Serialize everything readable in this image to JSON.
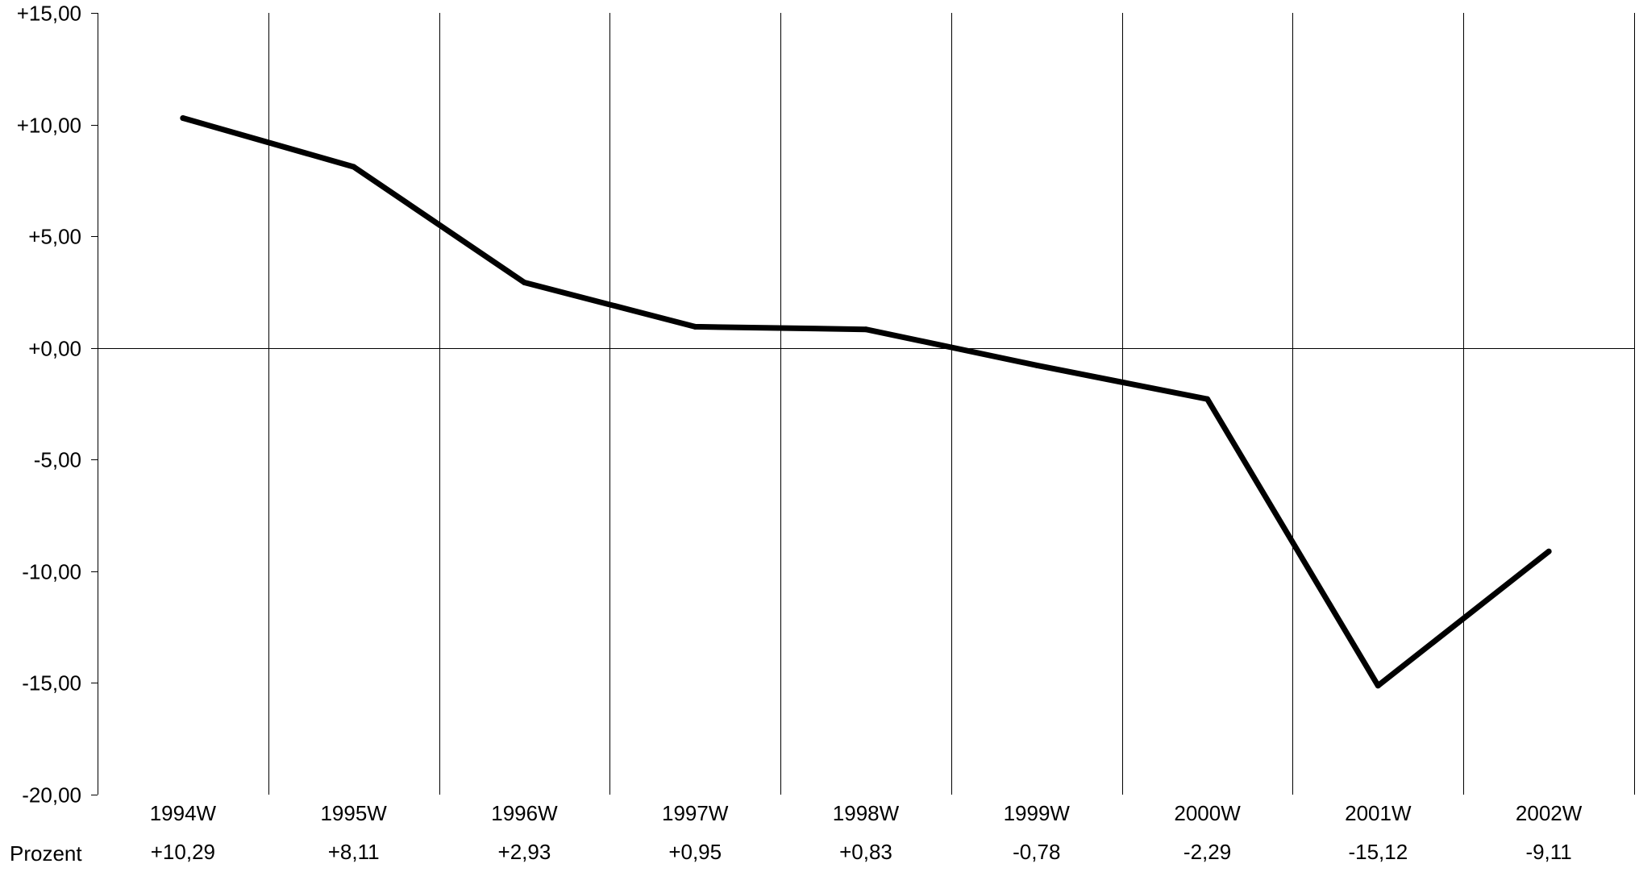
{
  "chart_data": {
    "type": "line",
    "categories": [
      "1994W",
      "1995W",
      "1996W",
      "1997W",
      "1998W",
      "1999W",
      "2000W",
      "2001W",
      "2002W"
    ],
    "series": [
      {
        "values": [
          10.29,
          8.11,
          2.93,
          0.95,
          0.83,
          -0.78,
          -2.29,
          -15.12,
          -9.11
        ]
      }
    ],
    "ylim": [
      -20,
      15
    ],
    "yticks": [
      15,
      10,
      5,
      0,
      -5,
      -10,
      -15,
      -20
    ],
    "ytick_labels": [
      "+15,00",
      "+10,00",
      "+5,00",
      "+0,00",
      "-5,00",
      "-10,00",
      "-15,00",
      "-20,00"
    ],
    "table": {
      "row_label": "Prozent",
      "values": [
        "+10,29",
        "+8,11",
        "+2,93",
        "+0,95",
        "+0,83",
        "-0,78",
        "-2,29",
        "-15,12",
        "-9,11"
      ]
    },
    "grid": true,
    "legend": "none",
    "title": "",
    "xlabel": "",
    "ylabel": "",
    "colors": {
      "line": "#000000",
      "grid": "#000000",
      "background": "#ffffff"
    }
  }
}
